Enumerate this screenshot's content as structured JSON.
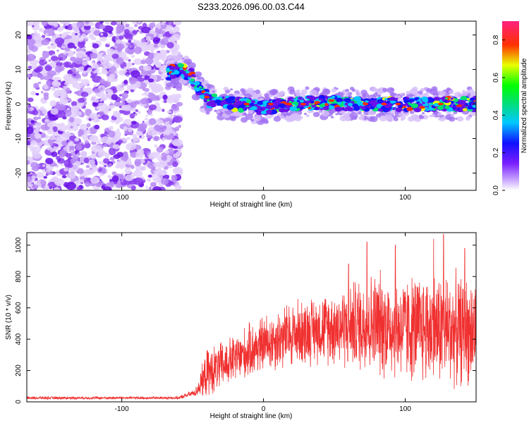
{
  "title": "S233.2026.096.00.03.C44",
  "chart_data": [
    {
      "type": "heatmap",
      "xlabel": "Height of straight line (km)",
      "ylabel": "Frequency (Hz)",
      "xlim": [
        -167,
        150
      ],
      "ylim": [
        -25,
        24
      ],
      "xticks": [
        "-100",
        "0",
        "100"
      ],
      "xtick_values": [
        -100,
        0,
        100
      ],
      "yticks": [
        "20",
        "10",
        "0",
        "-10",
        "-20"
      ],
      "ytick_values": [
        20,
        10,
        0,
        -10,
        -20
      ],
      "colorbar": {
        "label": "Normalized spectral amplitude",
        "range": [
          0,
          0.9
        ],
        "ticks": [
          "0.0",
          "0.2",
          "0.4",
          "0.6",
          "0.8"
        ],
        "tick_values": [
          0.0,
          0.2,
          0.4,
          0.6,
          0.8
        ],
        "colormap": "rainbow (white-purple-blue-cyan-green-yellow-red-magenta)"
      },
      "features": {
        "noise_region_x": [
          -167,
          -62
        ],
        "ridge_points": [
          {
            "x": -67,
            "freq": 9
          },
          {
            "x": -58,
            "freq": 10
          },
          {
            "x": -50,
            "freq": 8
          },
          {
            "x": -45,
            "freq": 4
          },
          {
            "x": -38,
            "freq": 1
          },
          {
            "x": -20,
            "freq": 0
          },
          {
            "x": 0,
            "freq": -1
          },
          {
            "x": 20,
            "freq": 0
          },
          {
            "x": 40,
            "freq": 0.5
          },
          {
            "x": 60,
            "freq": 0
          },
          {
            "x": 80,
            "freq": 0
          },
          {
            "x": 100,
            "freq": 0
          },
          {
            "x": 120,
            "freq": 0
          },
          {
            "x": 150,
            "freq": 0
          }
        ]
      }
    },
    {
      "type": "line",
      "xlabel": "Height of straight line (km)",
      "ylabel": "SNR (10 * v/v)",
      "xlim": [
        -167,
        150
      ],
      "ylim": [
        0,
        1080
      ],
      "xticks": [
        "-100",
        "0",
        "100"
      ],
      "xtick_values": [
        -100,
        0,
        100
      ],
      "yticks": [
        "0",
        "200",
        "400",
        "600",
        "800",
        "1000"
      ],
      "ytick_values": [
        0,
        200,
        400,
        600,
        800,
        1000
      ],
      "color": "#f03030",
      "envelope": [
        {
          "x": -167,
          "baseline": 25,
          "spread": 15
        },
        {
          "x": -60,
          "baseline": 25,
          "spread": 15
        },
        {
          "x": -48,
          "baseline": 60,
          "spread": 40
        },
        {
          "x": -40,
          "baseline": 180,
          "spread": 250
        },
        {
          "x": -25,
          "baseline": 250,
          "spread": 250
        },
        {
          "x": 0,
          "baseline": 370,
          "spread": 300
        },
        {
          "x": 20,
          "baseline": 430,
          "spread": 350
        },
        {
          "x": 40,
          "baseline": 470,
          "spread": 350
        },
        {
          "x": 60,
          "baseline": 490,
          "spread": 450
        },
        {
          "x": 80,
          "baseline": 500,
          "spread": 550
        },
        {
          "x": 100,
          "baseline": 470,
          "spread": 550
        },
        {
          "x": 120,
          "baseline": 470,
          "spread": 600
        },
        {
          "x": 150,
          "baseline": 450,
          "spread": 550
        }
      ],
      "peaks": [
        {
          "x": 73,
          "y": 1020
        },
        {
          "x": 93,
          "y": 1000
        },
        {
          "x": 120,
          "y": 1040
        },
        {
          "x": 127,
          "y": 1070
        },
        {
          "x": 60,
          "y": 880
        },
        {
          "x": 142,
          "y": 980
        }
      ]
    }
  ]
}
